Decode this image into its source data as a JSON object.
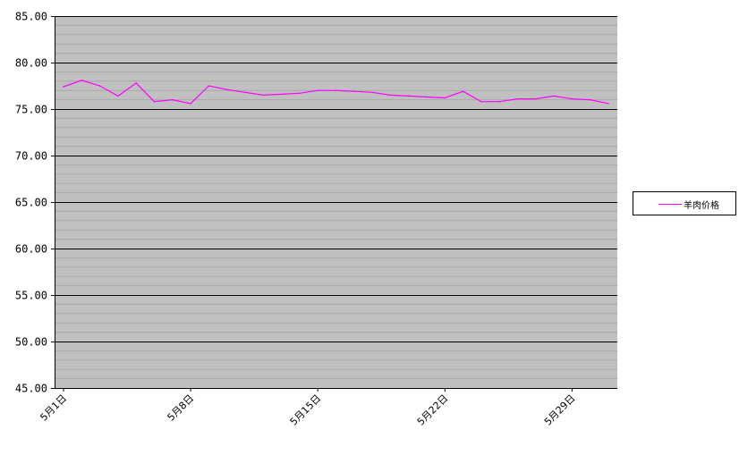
{
  "chart_data": {
    "type": "line",
    "title": "",
    "xlabel": "",
    "ylabel": "",
    "ylim": [
      45,
      85
    ],
    "y_major_step": 5,
    "y_minor_step": 1,
    "y_tick_labels": [
      "45.00",
      "50.00",
      "55.00",
      "60.00",
      "65.00",
      "70.00",
      "75.00",
      "80.00",
      "85.00"
    ],
    "x_tick_labels": [
      "5月1日",
      "5月8日",
      "5月15日",
      "5月22日",
      "5月29日"
    ],
    "x_tick_every": 7,
    "grid": true,
    "plot_background": "#c0c0c0",
    "legend_position": "right",
    "categories": [
      "5/1",
      "5/2",
      "5/3",
      "5/4",
      "5/5",
      "5/6",
      "5/7",
      "5/8",
      "5/9",
      "5/10",
      "5/11",
      "5/12",
      "5/13",
      "5/14",
      "5/15",
      "5/16",
      "5/17",
      "5/18",
      "5/19",
      "5/20",
      "5/21",
      "5/22",
      "5/23",
      "5/24",
      "5/25",
      "5/26",
      "5/27",
      "5/28",
      "5/29",
      "5/30",
      "5/31"
    ],
    "series": [
      {
        "name": "羊肉价格",
        "color": "#ff00ff",
        "values": [
          77.4,
          78.1,
          77.5,
          76.4,
          77.8,
          75.8,
          76.0,
          75.6,
          77.5,
          77.1,
          76.8,
          76.5,
          76.6,
          76.7,
          77.0,
          77.0,
          76.9,
          76.8,
          76.5,
          76.4,
          76.3,
          76.2,
          76.9,
          75.8,
          75.8,
          76.1,
          76.1,
          76.4,
          76.1,
          76.0,
          75.6
        ]
      }
    ]
  }
}
